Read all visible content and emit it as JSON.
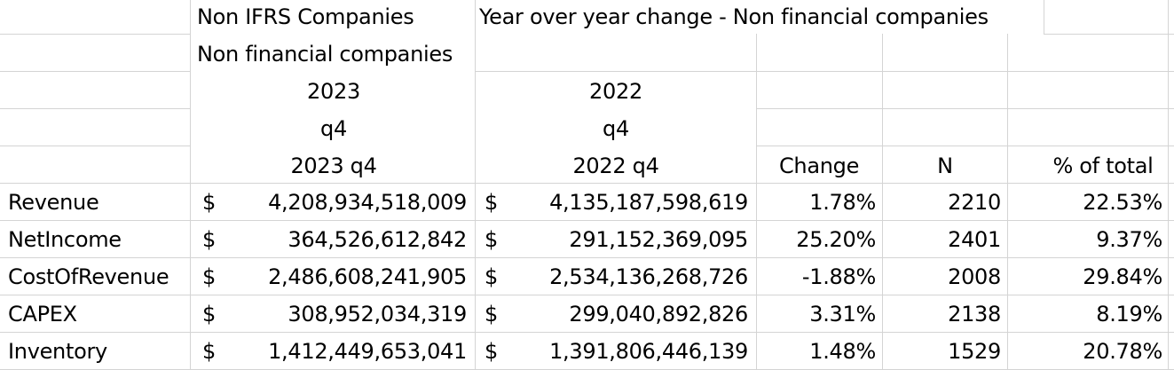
{
  "header": {
    "non_ifrs": "Non IFRS Companies",
    "yoy_title": "Year over year change - Non financial companies",
    "non_financial": "Non financial companies",
    "year_a": "2023",
    "year_b": "2022",
    "quarter_a": "q4",
    "quarter_b": "q4",
    "period_a": "2023 q4",
    "period_b": "2022 q4",
    "col_change": "Change",
    "col_n": "N",
    "col_pct_total": "% of total"
  },
  "currency_symbol": "$",
  "rows": [
    {
      "label": "Revenue",
      "val_2023": "4,208,934,518,009",
      "val_2022": "4,135,187,598,619",
      "change": "1.78%",
      "n": "2210",
      "pct_total": "22.53%"
    },
    {
      "label": "NetIncome",
      "val_2023": "364,526,612,842",
      "val_2022": "291,152,369,095",
      "change": "25.20%",
      "n": "2401",
      "pct_total": "9.37%"
    },
    {
      "label": "CostOfRevenue",
      "val_2023": "2,486,608,241,905",
      "val_2022": "2,534,136,268,726",
      "change": "-1.88%",
      "n": "2008",
      "pct_total": "29.84%"
    },
    {
      "label": "CAPEX",
      "val_2023": "308,952,034,319",
      "val_2022": "299,040,892,826",
      "change": "3.31%",
      "n": "2138",
      "pct_total": "8.19%"
    },
    {
      "label": "Inventory",
      "val_2023": "1,412,449,653,041",
      "val_2022": "1,391,806,446,139",
      "change": "1.48%",
      "n": "1529",
      "pct_total": "20.78%"
    }
  ]
}
